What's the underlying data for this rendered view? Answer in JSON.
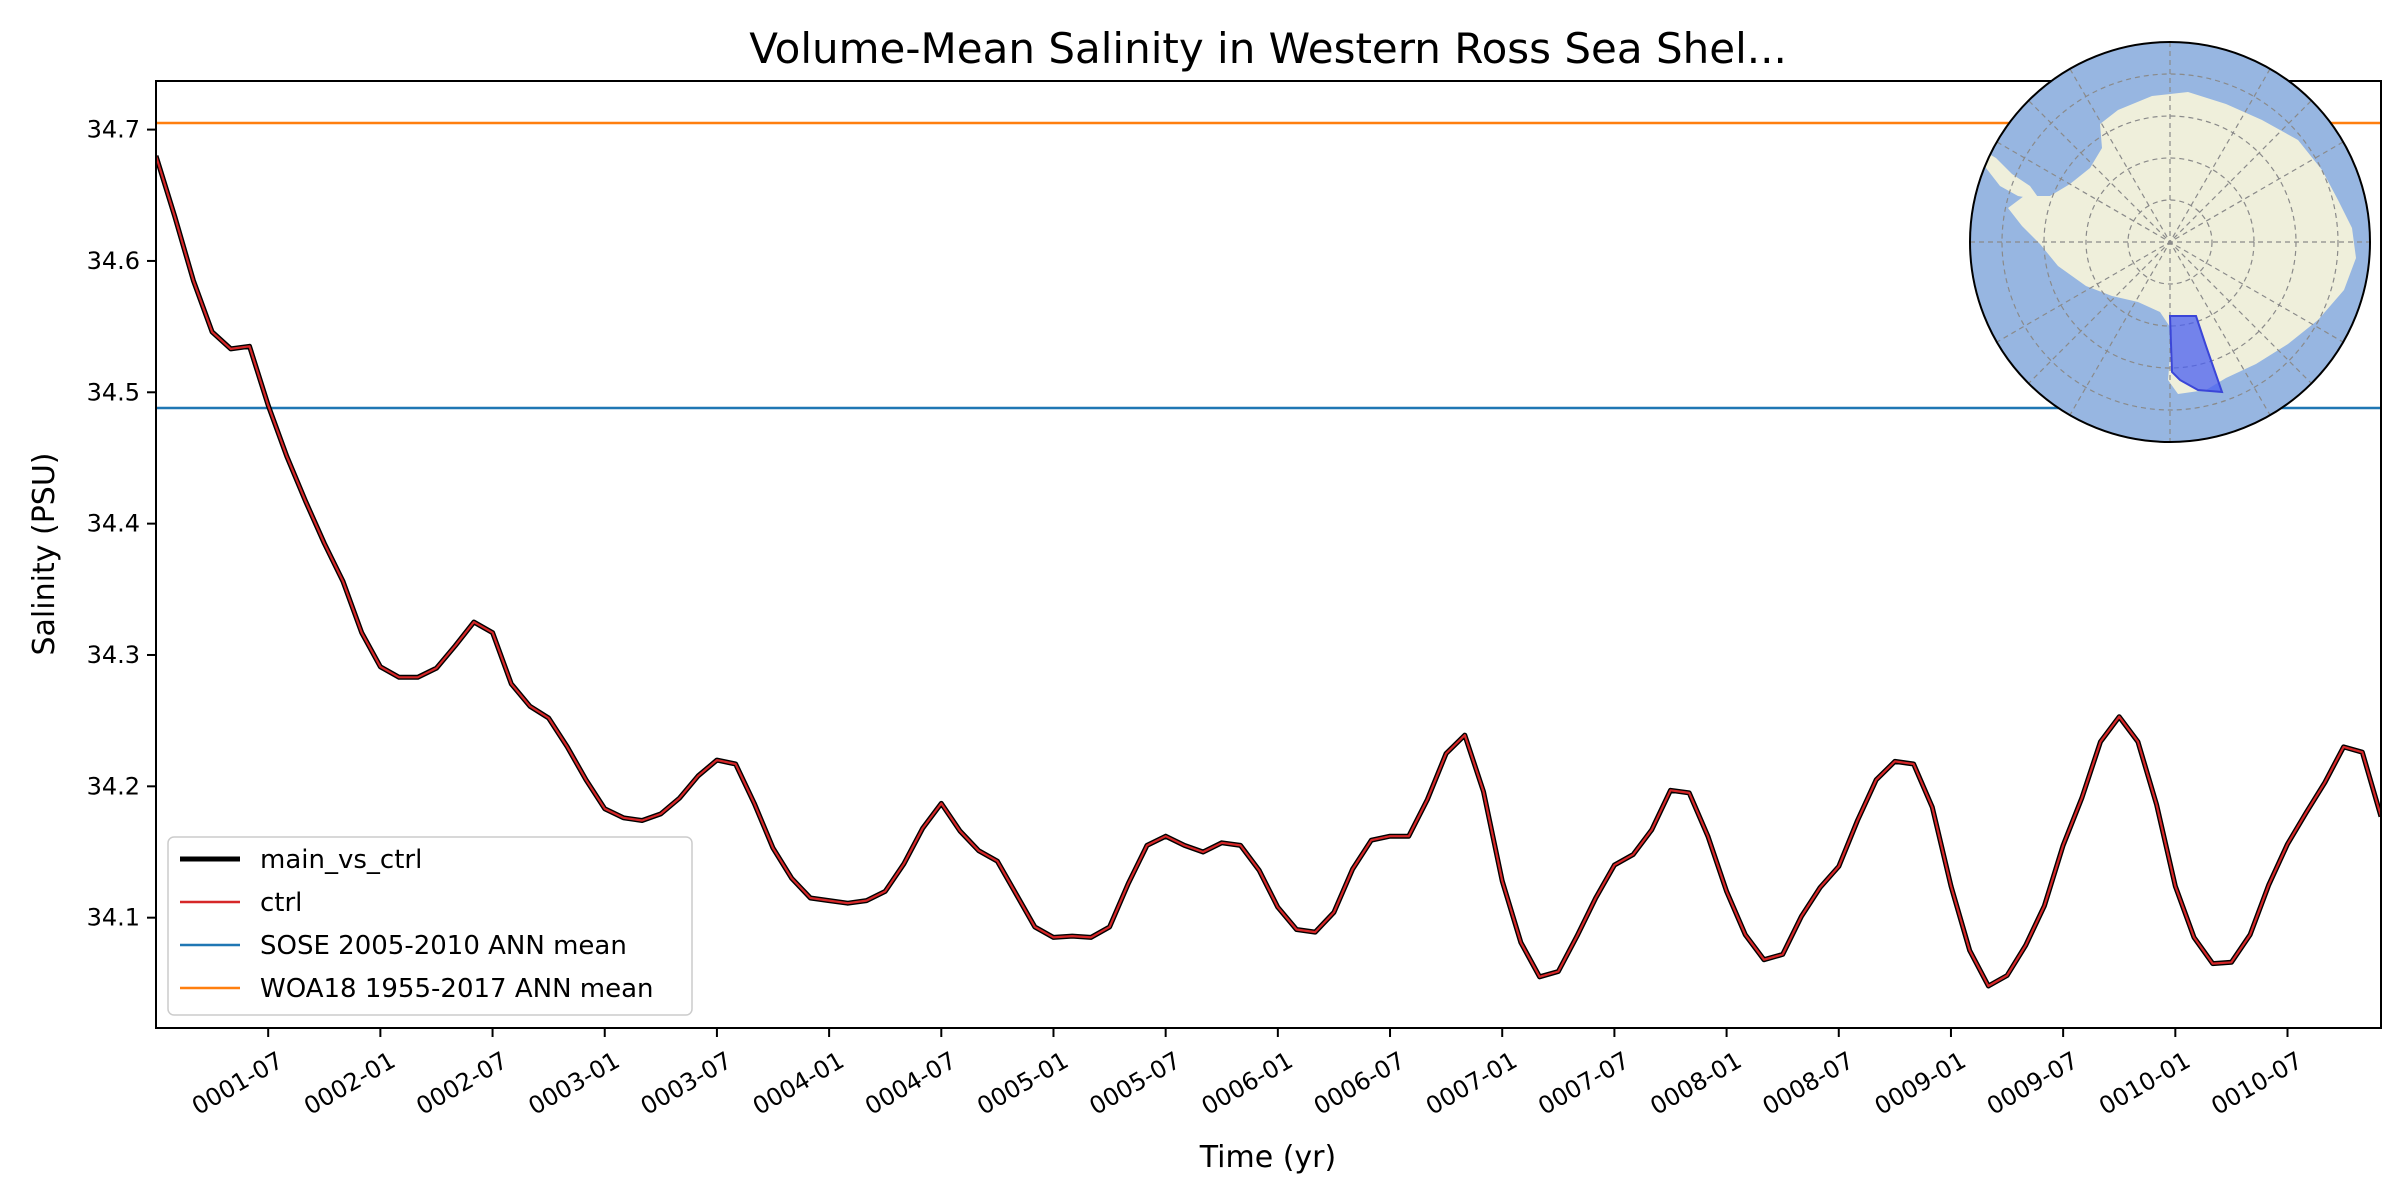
{
  "chart_data": {
    "type": "line",
    "title": "Volume-Mean Salinity in Western Ross Sea Shel...",
    "xlabel": "Time (yr)",
    "ylabel": "Salinity (PSU)",
    "ylim": [
      34.016,
      34.737
    ],
    "yticks": [
      34.1,
      34.2,
      34.3,
      34.4,
      34.5,
      34.6,
      34.7
    ],
    "x_month_range": [
      0,
      119
    ],
    "xticks": [
      {
        "label": "0001-07",
        "month": 6
      },
      {
        "label": "0002-01",
        "month": 12
      },
      {
        "label": "0002-07",
        "month": 18
      },
      {
        "label": "0003-01",
        "month": 24
      },
      {
        "label": "0003-07",
        "month": 30
      },
      {
        "label": "0004-01",
        "month": 36
      },
      {
        "label": "0004-07",
        "month": 42
      },
      {
        "label": "0005-01",
        "month": 48
      },
      {
        "label": "0005-07",
        "month": 54
      },
      {
        "label": "0006-01",
        "month": 60
      },
      {
        "label": "0006-07",
        "month": 66
      },
      {
        "label": "0007-01",
        "month": 72
      },
      {
        "label": "0007-07",
        "month": 78
      },
      {
        "label": "0008-01",
        "month": 84
      },
      {
        "label": "0008-07",
        "month": 90
      },
      {
        "label": "0009-01",
        "month": 96
      },
      {
        "label": "0009-07",
        "month": 102
      },
      {
        "label": "0010-01",
        "month": 108
      },
      {
        "label": "0010-07",
        "month": 114
      }
    ],
    "series": [
      {
        "name": "main_vs_ctrl",
        "color": "#000000"
      },
      {
        "name": "ctrl",
        "color": "#d62728"
      }
    ],
    "values": [
      34.68,
      34.634,
      34.585,
      34.546,
      34.533,
      34.535,
      34.49,
      34.451,
      34.417,
      34.385,
      34.356,
      34.317,
      34.291,
      34.283,
      34.283,
      34.29,
      34.307,
      34.325,
      34.317,
      34.278,
      34.261,
      34.252,
      34.23,
      34.205,
      34.183,
      34.176,
      34.174,
      34.179,
      34.191,
      34.208,
      34.22,
      34.217,
      34.187,
      34.153,
      34.13,
      34.115,
      34.113,
      34.111,
      34.113,
      34.12,
      34.141,
      34.168,
      34.187,
      34.166,
      34.151,
      34.143,
      34.118,
      34.093,
      34.085,
      34.086,
      34.085,
      34.093,
      34.126,
      34.155,
      34.162,
      34.155,
      34.15,
      34.157,
      34.155,
      34.136,
      34.108,
      34.091,
      34.089,
      34.104,
      34.137,
      34.159,
      34.162,
      34.162,
      34.19,
      34.225,
      34.239,
      34.196,
      34.128,
      34.081,
      34.055,
      34.059,
      34.086,
      34.115,
      34.14,
      34.148,
      34.167,
      34.197,
      34.195,
      34.162,
      34.12,
      34.087,
      34.068,
      34.072,
      34.101,
      34.123,
      34.139,
      34.174,
      34.205,
      34.219,
      34.217,
      34.184,
      34.124,
      34.075,
      34.048,
      34.056,
      34.079,
      34.109,
      34.155,
      34.191,
      34.234,
      34.253,
      34.234,
      34.186,
      34.124,
      34.085,
      34.065,
      34.066,
      34.087,
      34.125,
      34.156,
      34.18,
      34.203,
      34.23,
      34.226,
      34.177
    ],
    "reference_lines": [
      {
        "name": "SOSE 2005-2010 ANN mean",
        "value": 34.488,
        "color": "#1f77b4"
      },
      {
        "name": "WOA18 1955-2017 ANN mean",
        "value": 34.705,
        "color": "#ff7f0e"
      }
    ],
    "legend": {
      "location": "lower-left",
      "entries": [
        "main_vs_ctrl",
        "ctrl",
        "SOSE 2005-2010 ANN mean",
        "WOA18 1955-2017 ANN mean"
      ]
    },
    "inset_map": {
      "location": "top-right",
      "projection": "south-polar-stereographic",
      "ocean_color": "#97b6e1",
      "land_color": "#efefdb",
      "region_color": "#4a5ff0",
      "region_name": "Western Ross Sea Shelf"
    }
  }
}
